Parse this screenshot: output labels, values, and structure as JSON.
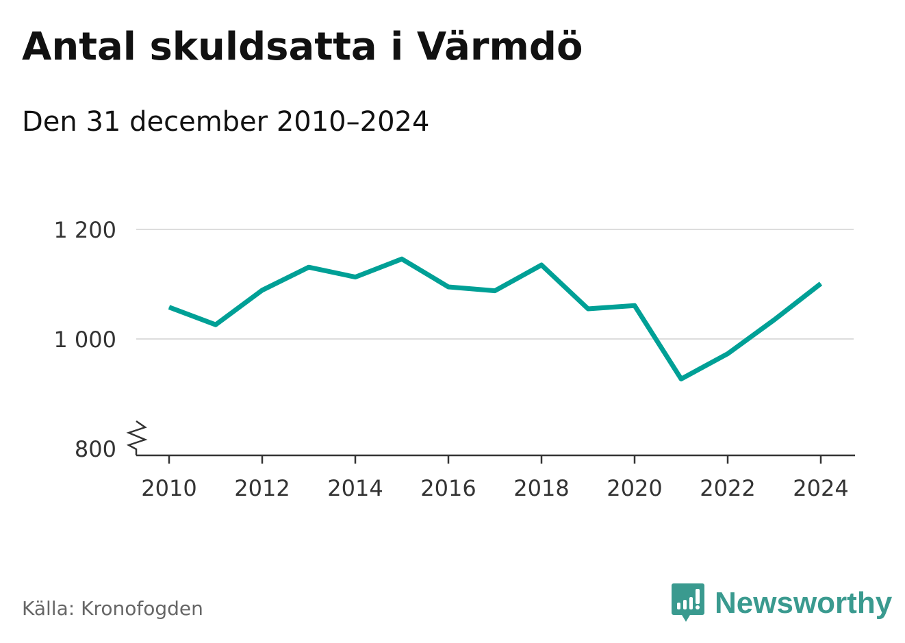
{
  "title": "Antal skuldsatta i Värmdö",
  "subtitle": "Den 31 december 2010–2024",
  "source": "Källa: Kronofogden",
  "logo": "Newsworthy",
  "colors": {
    "line": "#00a096",
    "grid": "#dddddd",
    "logo": "#3a9a8f"
  },
  "chart_data": {
    "type": "line",
    "title": "Antal skuldsatta i Värmdö",
    "subtitle": "Den 31 december 2010–2024",
    "x": [
      2010,
      2011,
      2012,
      2013,
      2014,
      2015,
      2016,
      2017,
      2018,
      2019,
      2020,
      2021,
      2022,
      2023,
      2024
    ],
    "series": [
      {
        "name": "Antal skuldsatta",
        "values": [
          1058,
          1026,
          1089,
          1131,
          1113,
          1146,
          1095,
          1088,
          1135,
          1055,
          1061,
          927,
          973,
          1035,
          1101
        ]
      }
    ],
    "xticks": [
      "2010",
      "2012",
      "2014",
      "2016",
      "2018",
      "2020",
      "2022",
      "2024"
    ],
    "yticks": [
      {
        "v": 800,
        "label": "800"
      },
      {
        "v": 1000,
        "label": "1 000"
      },
      {
        "v": 1200,
        "label": "1 200"
      }
    ],
    "ylim": [
      800,
      1200
    ],
    "xlim": [
      2010,
      2024
    ],
    "grid": true,
    "axis_break": true
  }
}
